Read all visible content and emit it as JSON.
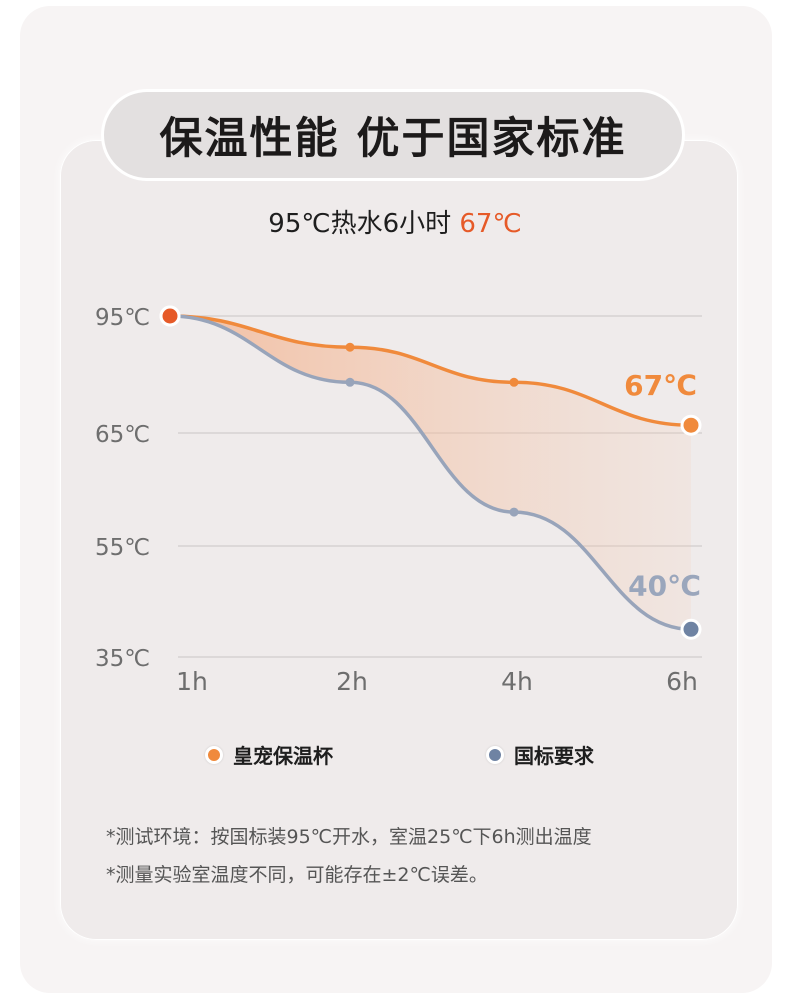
{
  "title": "保温性能 优于国家标准",
  "subtitle": {
    "prefix": "95℃热水6小时 ",
    "highlight": "67℃"
  },
  "chart_data": {
    "type": "line",
    "x": [
      "1h",
      "2h",
      "4h",
      "6h"
    ],
    "y_ticks": [
      "95℃",
      "65℃",
      "55℃",
      "35℃"
    ],
    "series": [
      {
        "name": "皇宠保温杯",
        "color": "#f08a3c",
        "values": [
          95,
          87,
          78,
          67
        ],
        "end_label": "67℃"
      },
      {
        "name": "国标要求",
        "color": "#98a4ba",
        "values": [
          95,
          78,
          58,
          40
        ],
        "end_label": "40℃"
      }
    ],
    "grid": true,
    "legend_position": "bottom"
  },
  "colors": {
    "accent": "#e65a28",
    "product_line": "#f08a3c",
    "standard_line": "#98a4ba",
    "standard_dot": "#6f83a3"
  },
  "notes": [
    "*测试环境：按国标装95℃开水，室温25℃下6h测出温度",
    "*测量实验室温度不同，可能存在±2℃误差。"
  ]
}
